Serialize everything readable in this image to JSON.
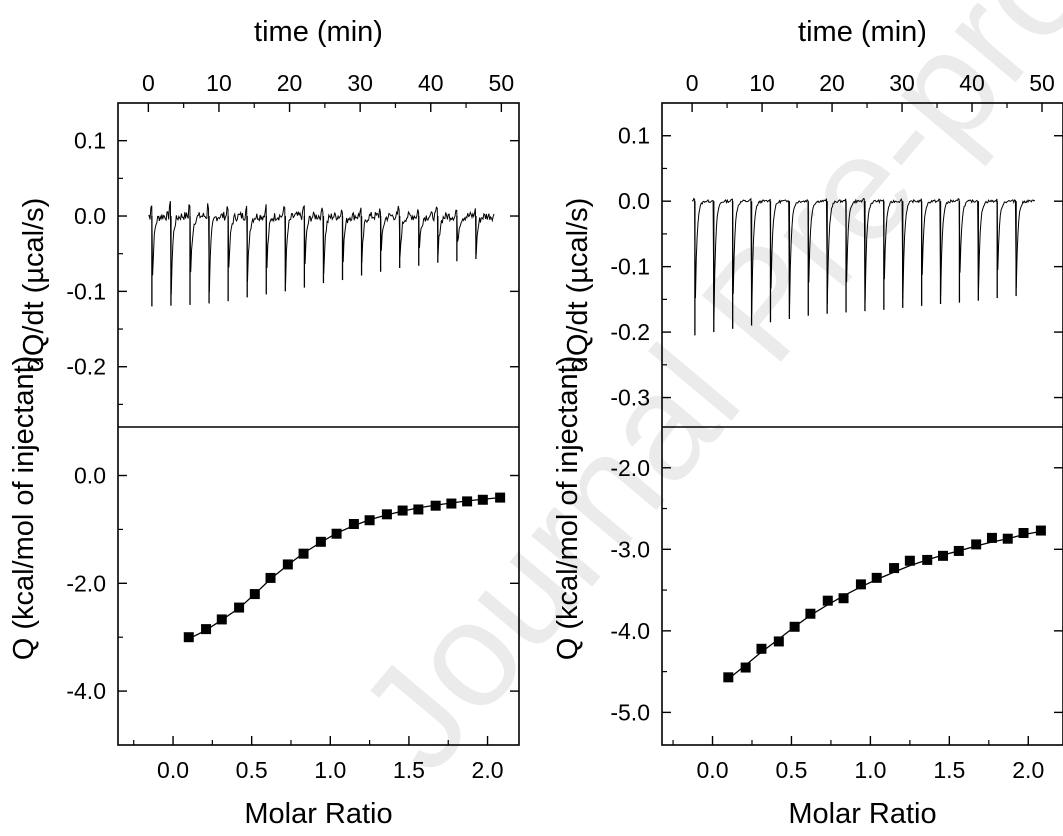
{
  "watermark": "Journal Pre-proof",
  "chart_data": [
    {
      "id": "left",
      "type": "line",
      "panel": "thermogram",
      "x_label": "time (min)",
      "y_label": "dQ/dt (µcal/s)",
      "xlim": [
        -4.3,
        52.5
      ],
      "ylim": [
        -0.28,
        0.15
      ],
      "x_ticks": [
        0,
        10,
        20,
        30,
        40,
        50
      ],
      "x_tick_labels": [
        "0",
        "10",
        "20",
        "30",
        "40",
        "50"
      ],
      "y_ticks": [
        0.1,
        0.0,
        -0.1,
        -0.2
      ],
      "y_tick_labels": [
        "0.1",
        "0.0",
        "-0.1",
        "-0.2"
      ],
      "baseline": 0.0,
      "injection_times": [
        0.5,
        3.2,
        5.9,
        8.6,
        11.3,
        14.0,
        16.7,
        19.4,
        22.1,
        24.8,
        27.5,
        30.2,
        32.9,
        35.6,
        38.3,
        41.0,
        43.7,
        46.4
      ],
      "peak_values": [
        -0.12,
        -0.119,
        -0.118,
        -0.116,
        -0.113,
        -0.108,
        -0.104,
        -0.1,
        -0.095,
        -0.089,
        -0.085,
        -0.079,
        -0.074,
        -0.069,
        -0.066,
        -0.062,
        -0.06,
        -0.057
      ],
      "noise_amplitude": 0.012,
      "end_time": 49.0
    },
    {
      "id": "left",
      "type": "scatter",
      "panel": "isotherm",
      "x_label": "Molar Ratio",
      "y_label": "Q (kcal/mol of injectant)",
      "xlim": [
        -0.35,
        2.2
      ],
      "ylim": [
        -5.0,
        0.9
      ],
      "x_ticks": [
        0.0,
        0.5,
        1.0,
        1.5,
        2.0
      ],
      "x_tick_labels": [
        "0.0",
        "0.5",
        "1.0",
        "1.5",
        "2.0"
      ],
      "y_ticks": [
        0.0,
        -2.0,
        -4.0
      ],
      "y_tick_labels": [
        "0.0",
        "-2.0",
        "-4.0"
      ],
      "x": [
        0.1,
        0.21,
        0.31,
        0.42,
        0.52,
        0.62,
        0.73,
        0.83,
        0.94,
        1.04,
        1.15,
        1.25,
        1.36,
        1.46,
        1.56,
        1.67,
        1.77,
        1.87,
        1.97,
        2.08
      ],
      "y": [
        -3.0,
        -2.85,
        -2.67,
        -2.45,
        -2.2,
        -1.9,
        -1.65,
        -1.45,
        -1.23,
        -1.08,
        -0.9,
        -0.83,
        -0.72,
        -0.65,
        -0.63,
        -0.56,
        -0.52,
        -0.48,
        -0.45,
        -0.41
      ],
      "fit_x": [
        0.1,
        0.21,
        0.31,
        0.42,
        0.52,
        0.62,
        0.73,
        0.83,
        0.94,
        1.04,
        1.15,
        1.25,
        1.36,
        1.46,
        1.56,
        1.67,
        1.77,
        1.87,
        1.97,
        2.08
      ],
      "fit_y": [
        -3.03,
        -2.87,
        -2.68,
        -2.46,
        -2.2,
        -1.92,
        -1.66,
        -1.44,
        -1.24,
        -1.07,
        -0.93,
        -0.82,
        -0.73,
        -0.66,
        -0.6,
        -0.55,
        -0.51,
        -0.47,
        -0.44,
        -0.41
      ]
    },
    {
      "id": "right",
      "type": "line",
      "panel": "thermogram",
      "x_label": "time (min)",
      "y_label": "dQ/dt (µcal/s)",
      "xlim": [
        -4.3,
        53.0
      ],
      "ylim": [
        -0.345,
        0.15
      ],
      "x_ticks": [
        0,
        10,
        20,
        30,
        40,
        50
      ],
      "x_tick_labels": [
        "0",
        "10",
        "20",
        "30",
        "40",
        "50"
      ],
      "y_ticks": [
        0.1,
        0.0,
        -0.1,
        -0.2,
        -0.3
      ],
      "y_tick_labels": [
        "0.1",
        "0.0",
        "-0.1",
        "-0.2",
        "-0.3"
      ],
      "baseline": 0.0,
      "injection_times": [
        0.4,
        3.1,
        5.8,
        8.5,
        11.2,
        13.9,
        16.6,
        19.3,
        22.0,
        24.7,
        27.4,
        30.1,
        32.8,
        35.5,
        38.2,
        40.9,
        43.6,
        46.3
      ],
      "peak_values": [
        -0.205,
        -0.2,
        -0.195,
        -0.19,
        -0.185,
        -0.18,
        -0.175,
        -0.172,
        -0.17,
        -0.168,
        -0.166,
        -0.163,
        -0.16,
        -0.157,
        -0.155,
        -0.152,
        -0.148,
        -0.145
      ],
      "noise_amplitude": 0.004,
      "end_time": 49.0
    },
    {
      "id": "right",
      "type": "scatter",
      "panel": "isotherm",
      "x_label": "Molar Ratio",
      "y_label": "Q (kcal/mol of injectant)",
      "xlim": [
        -0.32,
        2.22
      ],
      "ylim": [
        -5.4,
        -1.5
      ],
      "x_ticks": [
        0.0,
        0.5,
        1.0,
        1.5,
        2.0
      ],
      "x_tick_labels": [
        "0.0",
        "0.5",
        "1.0",
        "1.5",
        "2.0"
      ],
      "y_ticks": [
        -2.0,
        -3.0,
        -4.0,
        -5.0
      ],
      "y_tick_labels": [
        "-2.0",
        "-3.0",
        "-4.0",
        "-5.0"
      ],
      "x": [
        0.1,
        0.21,
        0.31,
        0.42,
        0.52,
        0.62,
        0.73,
        0.83,
        0.94,
        1.04,
        1.15,
        1.25,
        1.36,
        1.46,
        1.56,
        1.67,
        1.77,
        1.87,
        1.97,
        2.08
      ],
      "y": [
        -4.57,
        -4.45,
        -4.22,
        -4.13,
        -3.95,
        -3.79,
        -3.63,
        -3.6,
        -3.43,
        -3.35,
        -3.23,
        -3.14,
        -3.13,
        -3.08,
        -3.02,
        -2.94,
        -2.86,
        -2.87,
        -2.8,
        -2.77
      ],
      "fit_x": [
        0.1,
        0.21,
        0.31,
        0.42,
        0.52,
        0.62,
        0.73,
        0.83,
        0.94,
        1.04,
        1.15,
        1.25,
        1.36,
        1.46,
        1.56,
        1.67,
        1.77,
        1.87,
        1.97,
        2.08
      ],
      "fit_y": [
        -4.59,
        -4.42,
        -4.26,
        -4.1,
        -3.95,
        -3.81,
        -3.68,
        -3.57,
        -3.46,
        -3.37,
        -3.28,
        -3.2,
        -3.13,
        -3.07,
        -3.02,
        -2.96,
        -2.91,
        -2.87,
        -2.82,
        -2.78
      ]
    }
  ]
}
